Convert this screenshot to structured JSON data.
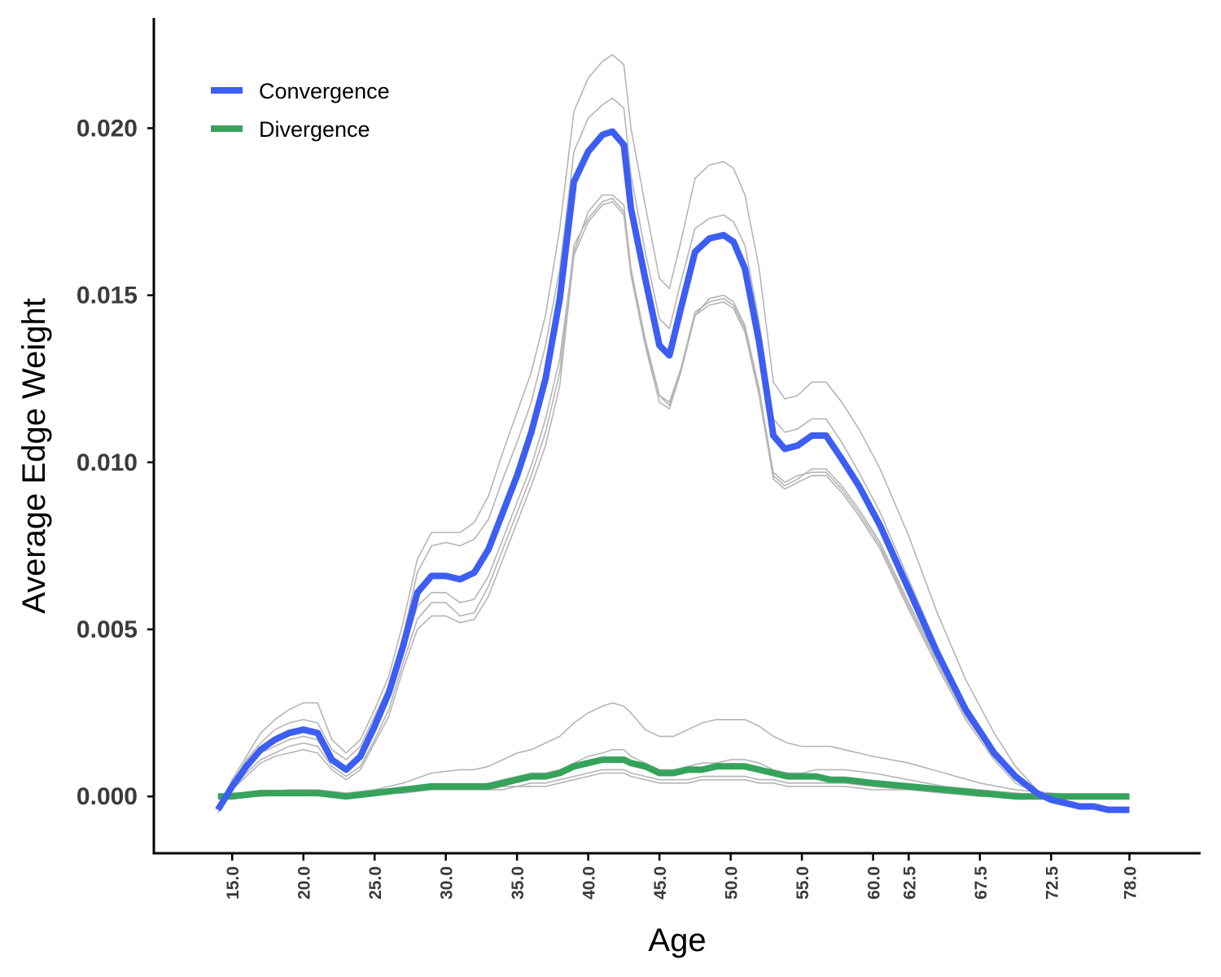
{
  "chart_data": {
    "type": "line",
    "xlabel": "Age",
    "ylabel": "Average Edge Weight",
    "xlim": [
      9.5,
      83.0
    ],
    "ylim": [
      -0.0017,
      0.0233
    ],
    "x_ticks": [
      15.0,
      20.0,
      25.0,
      30.0,
      35.0,
      40.0,
      45.0,
      50.0,
      55.0,
      60.0,
      62.5,
      67.5,
      72.5,
      78.0
    ],
    "x_tick_labels": [
      "15.0",
      "20.0",
      "25.0",
      "30.0",
      "35.0",
      "40.0",
      "45.0",
      "50.0",
      "55.0",
      "60.0",
      "62.5",
      "67.5",
      "72.5",
      "78.0"
    ],
    "y_ticks": [
      0.0,
      0.005,
      0.01,
      0.015,
      0.02
    ],
    "y_tick_labels": [
      "0.000",
      "0.005",
      "0.010",
      "0.015",
      "0.020"
    ],
    "grid": false,
    "legend": {
      "position": "top-left"
    },
    "series": [
      {
        "name": "Convergence",
        "color": "#3d5ef2",
        "x": [
          14.0,
          15.0,
          16.0,
          17.0,
          18.0,
          19.0,
          20.0,
          21.0,
          22.0,
          23.0,
          24.0,
          25.0,
          26.0,
          27.0,
          28.0,
          29.0,
          30.0,
          31.0,
          32.0,
          33.0,
          34.0,
          35.0,
          36.0,
          37.0,
          38.0,
          39.0,
          40.0,
          41.0,
          41.7,
          42.5,
          43.0,
          44.0,
          45.0,
          45.7,
          46.5,
          47.5,
          48.5,
          49.5,
          50.2,
          51.0,
          52.0,
          53.0,
          53.8,
          54.7,
          55.7,
          56.7,
          57.8,
          59.0,
          60.5,
          62.5,
          64.5,
          66.5,
          68.5,
          70.0,
          71.5,
          72.5,
          73.5,
          74.5,
          75.5,
          76.5,
          77.5,
          78.0
        ],
        "values": [
          -0.0004,
          0.0003,
          0.0009,
          0.0014,
          0.0017,
          0.0019,
          0.002,
          0.0019,
          0.0011,
          0.0008,
          0.0012,
          0.0021,
          0.0031,
          0.0045,
          0.0061,
          0.0066,
          0.0066,
          0.0065,
          0.0067,
          0.0074,
          0.0085,
          0.0096,
          0.0109,
          0.0125,
          0.0149,
          0.0184,
          0.0193,
          0.0198,
          0.0199,
          0.0195,
          0.0176,
          0.0155,
          0.0135,
          0.0132,
          0.0146,
          0.0163,
          0.0167,
          0.0168,
          0.0166,
          0.0158,
          0.0136,
          0.0108,
          0.0104,
          0.0105,
          0.0108,
          0.0108,
          0.0101,
          0.0093,
          0.0081,
          0.0062,
          0.0043,
          0.0026,
          0.0013,
          0.0006,
          0.0001,
          -0.0001,
          -0.0002,
          -0.0003,
          -0.0003,
          -0.0004,
          -0.0004,
          -0.0004
        ]
      },
      {
        "name": "Divergence",
        "color": "#36a35c",
        "x": [
          14.0,
          15.0,
          17.0,
          19.0,
          21.0,
          23.0,
          25.0,
          27.0,
          29.0,
          31.0,
          32.0,
          33.0,
          34.0,
          35.0,
          36.0,
          37.0,
          38.0,
          39.0,
          40.0,
          41.0,
          41.7,
          42.5,
          43.0,
          44.0,
          45.0,
          46.0,
          47.0,
          48.0,
          49.0,
          50.0,
          51.0,
          52.0,
          53.0,
          54.0,
          55.0,
          56.0,
          57.0,
          58.0,
          60.0,
          62.5,
          65.0,
          67.5,
          70.0,
          72.5,
          75.0,
          77.0,
          78.0
        ],
        "values": [
          0.0,
          0.0,
          0.0001,
          0.0001,
          0.0001,
          0.0,
          0.0001,
          0.0002,
          0.0003,
          0.0003,
          0.0003,
          0.0003,
          0.0004,
          0.0005,
          0.0006,
          0.0006,
          0.0007,
          0.0009,
          0.001,
          0.0011,
          0.0011,
          0.0011,
          0.001,
          0.0009,
          0.0007,
          0.0007,
          0.0008,
          0.0008,
          0.0009,
          0.0009,
          0.0009,
          0.0008,
          0.0007,
          0.0006,
          0.0006,
          0.0006,
          0.0005,
          0.0005,
          0.0004,
          0.0003,
          0.0002,
          0.0001,
          0.0,
          0.0,
          0.0,
          0.0,
          0.0
        ]
      }
    ],
    "background_series": [
      {
        "color": "#b5b5b5",
        "values": [
          -0.0005,
          0.0005,
          0.0012,
          0.0019,
          0.0023,
          0.0026,
          0.0028,
          0.0028,
          0.0017,
          0.0013,
          0.0017,
          0.0026,
          0.0036,
          0.0052,
          0.0071,
          0.0079,
          0.0079,
          0.0079,
          0.0082,
          0.009,
          0.0103,
          0.0115,
          0.0127,
          0.0144,
          0.017,
          0.0205,
          0.0215,
          0.022,
          0.0222,
          0.0219,
          0.02,
          0.0177,
          0.0155,
          0.0152,
          0.0166,
          0.0185,
          0.0189,
          0.019,
          0.0188,
          0.018,
          0.0158,
          0.0124,
          0.0119,
          0.012,
          0.0124,
          0.0124,
          0.0118,
          0.011,
          0.0098,
          0.0078,
          0.0055,
          0.0035,
          0.0019,
          0.0009,
          0.0002,
          -0.0001,
          -0.0002,
          -0.0003,
          -0.0003,
          -0.0004,
          -0.0004,
          -0.0004
        ]
      },
      {
        "color": "#b5b5b5",
        "values": [
          -0.0004,
          0.0004,
          0.0011,
          0.0016,
          0.002,
          0.0022,
          0.0023,
          0.0022,
          0.0014,
          0.0011,
          0.0015,
          0.0024,
          0.0033,
          0.0048,
          0.0067,
          0.0075,
          0.0076,
          0.0075,
          0.0077,
          0.0083,
          0.0095,
          0.0106,
          0.0118,
          0.0135,
          0.0158,
          0.0193,
          0.0203,
          0.0207,
          0.0209,
          0.0206,
          0.0186,
          0.0163,
          0.0143,
          0.014,
          0.0154,
          0.017,
          0.0173,
          0.0174,
          0.0172,
          0.0165,
          0.0142,
          0.0113,
          0.0109,
          0.011,
          0.0113,
          0.0113,
          0.0106,
          0.0097,
          0.0085,
          0.0065,
          0.0045,
          0.0027,
          0.0014,
          0.0006,
          0.0001,
          -0.0001,
          -0.0002,
          -0.0003,
          -0.0003,
          -0.0004,
          -0.0004,
          -0.0004
        ]
      },
      {
        "color": "#b5b5b5",
        "values": [
          -0.0004,
          0.0003,
          0.0008,
          0.0013,
          0.0015,
          0.0017,
          0.0018,
          0.0017,
          0.001,
          0.0008,
          0.0011,
          0.0019,
          0.0029,
          0.0043,
          0.0057,
          0.0061,
          0.0061,
          0.0058,
          0.0059,
          0.0066,
          0.0077,
          0.0088,
          0.0099,
          0.0113,
          0.0131,
          0.0163,
          0.0175,
          0.018,
          0.018,
          0.0177,
          0.0158,
          0.0137,
          0.012,
          0.0117,
          0.0127,
          0.0144,
          0.0149,
          0.015,
          0.0148,
          0.0141,
          0.0122,
          0.0096,
          0.0093,
          0.0095,
          0.0098,
          0.0098,
          0.0093,
          0.0086,
          0.0076,
          0.0058,
          0.0041,
          0.0025,
          0.0012,
          0.0005,
          0.0001,
          -0.0001,
          -0.0002,
          -0.0003,
          -0.0003,
          -0.0004,
          -0.0004,
          -0.0004
        ]
      },
      {
        "color": "#b5b5b5",
        "values": [
          -0.0004,
          0.0002,
          0.0007,
          0.0011,
          0.0013,
          0.0015,
          0.0016,
          0.0015,
          0.0009,
          0.0006,
          0.0009,
          0.0017,
          0.0026,
          0.004,
          0.0053,
          0.0058,
          0.0058,
          0.0054,
          0.0055,
          0.0063,
          0.0074,
          0.0085,
          0.0096,
          0.0109,
          0.0127,
          0.0165,
          0.0173,
          0.0178,
          0.0179,
          0.0175,
          0.0157,
          0.0136,
          0.012,
          0.0118,
          0.0128,
          0.0145,
          0.0148,
          0.0149,
          0.0147,
          0.014,
          0.0121,
          0.0097,
          0.0094,
          0.0096,
          0.0097,
          0.0097,
          0.0092,
          0.0085,
          0.0075,
          0.0057,
          0.004,
          0.0024,
          0.0012,
          0.0005,
          0.0001,
          -0.0001,
          -0.0002,
          -0.0003,
          -0.0003,
          -0.0004,
          -0.0004,
          -0.0004
        ]
      },
      {
        "color": "#b5b5b5",
        "values": [
          -0.0004,
          0.0002,
          0.0006,
          0.001,
          0.0012,
          0.0013,
          0.0014,
          0.0013,
          0.0008,
          0.0005,
          0.0008,
          0.0016,
          0.0024,
          0.0038,
          0.005,
          0.0054,
          0.0054,
          0.0052,
          0.0053,
          0.006,
          0.0071,
          0.0082,
          0.0093,
          0.0105,
          0.0123,
          0.0162,
          0.0172,
          0.0177,
          0.0178,
          0.0174,
          0.0156,
          0.0135,
          0.0118,
          0.0116,
          0.0127,
          0.0144,
          0.0147,
          0.0148,
          0.0146,
          0.0139,
          0.012,
          0.0095,
          0.0092,
          0.0094,
          0.0096,
          0.0096,
          0.0091,
          0.0084,
          0.0074,
          0.0056,
          0.0039,
          0.0023,
          0.0011,
          0.0004,
          0.0001,
          -0.0001,
          -0.0002,
          -0.0003,
          -0.0003,
          -0.0004,
          -0.0004,
          -0.0004
        ]
      },
      {
        "color": "#b5b5b5",
        "values": [
          0.0,
          0.0001,
          0.0001,
          0.0002,
          0.0002,
          0.0001,
          0.0002,
          0.0004,
          0.0007,
          0.0008,
          0.0008,
          0.0009,
          0.0011,
          0.0013,
          0.0014,
          0.0016,
          0.0018,
          0.0022,
          0.0025,
          0.0027,
          0.0028,
          0.0027,
          0.0025,
          0.002,
          0.0018,
          0.0018,
          0.002,
          0.0022,
          0.0023,
          0.0023,
          0.0023,
          0.0021,
          0.0018,
          0.0016,
          0.0015,
          0.0015,
          0.0015,
          0.0014,
          0.0012,
          0.001,
          0.0007,
          0.0004,
          0.0002,
          0.0001,
          0.0,
          0.0,
          0.0
        ]
      },
      {
        "color": "#b5b5b5",
        "values": [
          0.0,
          0.0,
          0.0001,
          0.0001,
          0.0001,
          0.0,
          0.0001,
          0.0002,
          0.0003,
          0.0003,
          0.0003,
          0.0004,
          0.0005,
          0.0006,
          0.0007,
          0.0007,
          0.0008,
          0.001,
          0.0012,
          0.0013,
          0.0014,
          0.0014,
          0.0012,
          0.001,
          0.0008,
          0.0008,
          0.0009,
          0.001,
          0.001,
          0.0011,
          0.0011,
          0.001,
          0.0008,
          0.0007,
          0.0007,
          0.0008,
          0.0008,
          0.0008,
          0.0007,
          0.0005,
          0.0003,
          0.0002,
          0.0001,
          0.0,
          0.0,
          0.0,
          0.0
        ]
      },
      {
        "color": "#b5b5b5",
        "values": [
          0.0,
          0.0,
          0.0001,
          0.0001,
          0.0001,
          0.0,
          0.0001,
          0.0002,
          0.0002,
          0.0002,
          0.0002,
          0.0002,
          0.0003,
          0.0003,
          0.0004,
          0.0004,
          0.0005,
          0.0006,
          0.0007,
          0.0008,
          0.0008,
          0.0008,
          0.0007,
          0.0006,
          0.0005,
          0.0005,
          0.0005,
          0.0006,
          0.0006,
          0.0006,
          0.0006,
          0.0005,
          0.0005,
          0.0004,
          0.0004,
          0.0004,
          0.0004,
          0.0004,
          0.0003,
          0.0002,
          0.0001,
          0.0001,
          0.0,
          0.0,
          0.0,
          0.0,
          0.0
        ]
      },
      {
        "color": "#b5b5b5",
        "values": [
          0.0,
          0.0,
          0.0,
          0.0001,
          0.0001,
          0.0,
          0.0001,
          0.0001,
          0.0002,
          0.0002,
          0.0002,
          0.0002,
          0.0002,
          0.0003,
          0.0003,
          0.0003,
          0.0004,
          0.0005,
          0.0006,
          0.0007,
          0.0007,
          0.0007,
          0.0006,
          0.0005,
          0.0004,
          0.0004,
          0.0004,
          0.0005,
          0.0005,
          0.0005,
          0.0005,
          0.0004,
          0.0004,
          0.0003,
          0.0003,
          0.0003,
          0.0003,
          0.0003,
          0.0002,
          0.0002,
          0.0001,
          0.0,
          0.0,
          0.0,
          0.0,
          0.0,
          0.0
        ]
      }
    ]
  }
}
